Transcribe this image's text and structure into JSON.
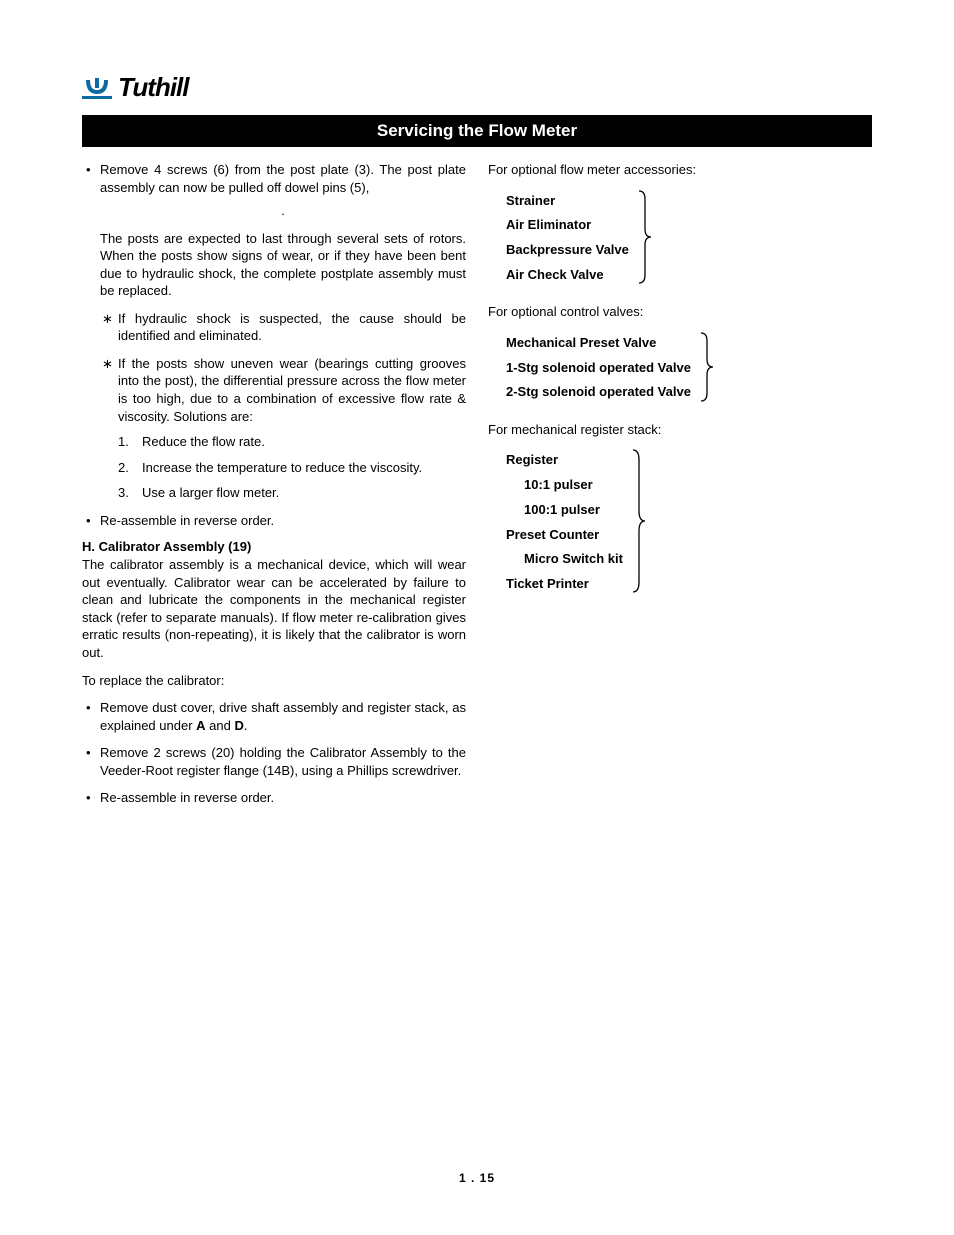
{
  "logo": {
    "text": "Tuthill",
    "mark_color": "#0b6aa2"
  },
  "title": "Servicing the Flow Meter",
  "left": {
    "bullet1": "Remove 4 screws (6) from the post plate (3).  The post plate assembly can now be pulled off dowel pins (5),",
    "posts_para": "The posts are expected to last through several sets of rotors.  When the posts show signs of wear, or if they have been bent due to hydraulic shock, the complete postplate assembly must be replaced.",
    "star1": "If hydraulic shock is suspected, the cause should be identified and eliminated.",
    "star2": "If the posts show uneven wear (bearings cutting grooves into the post), the differential pressure across the flow meter is too high, due to a combination of excessive flow rate & viscosity.  Solutions are:",
    "sol1": "Reduce the flow rate.",
    "sol2": "Increase the temperature to reduce the viscosity.",
    "sol3": "Use a larger flow meter.",
    "bullet_reassemble": "Re-assemble in reverse order.",
    "h_head": "H.  Calibrator Assembly (19)",
    "h_para": "The calibrator assembly is a mechanical device, which will wear out eventually.  Calibrator wear can be accelerated by failure to clean and lubricate the components in the mechanical register stack (refer to separate manuals).  If flow meter re-calibration gives erratic results (non-repeating), it is likely that the calibrator is worn out.",
    "replace_intro": "To replace the calibrator:",
    "rep1_a": "Remove dust cover, drive shaft assembly and register stack, as explained under ",
    "rep1_b": "A",
    "rep1_c": " and ",
    "rep1_d": "D",
    "rep1_e": ".",
    "rep2": "Remove 2 screws (20) holding the Calibrator Assembly to the Veeder-Root register flange (14B), using a Phillips screwdriver.",
    "rep3": "Re-assemble in reverse order."
  },
  "right": {
    "acc_intro": "For optional flow meter accessories:",
    "acc": [
      "Strainer",
      "Air Eliminator",
      "Backpressure Valve",
      "Air Check Valve"
    ],
    "valve_intro": "For optional control valves:",
    "valves": [
      "Mechanical Preset Valve",
      "1-Stg solenoid operated Valve",
      "2-Stg solenoid operated Valve"
    ],
    "reg_intro": "For mechanical register stack:",
    "reg": [
      {
        "t": "Register",
        "i": 0
      },
      {
        "t": "10:1 pulser",
        "i": 1
      },
      {
        "t": "100:1 pulser",
        "i": 1
      },
      {
        "t": "Preset Counter",
        "i": 0
      },
      {
        "t": "Micro Switch kit",
        "i": 1
      },
      {
        "t": "Ticket Printer",
        "i": 0
      }
    ]
  },
  "page_number": "1 . 15",
  "colors": {
    "title_bg": "#000000",
    "title_fg": "#ffffff",
    "text": "#000000"
  }
}
